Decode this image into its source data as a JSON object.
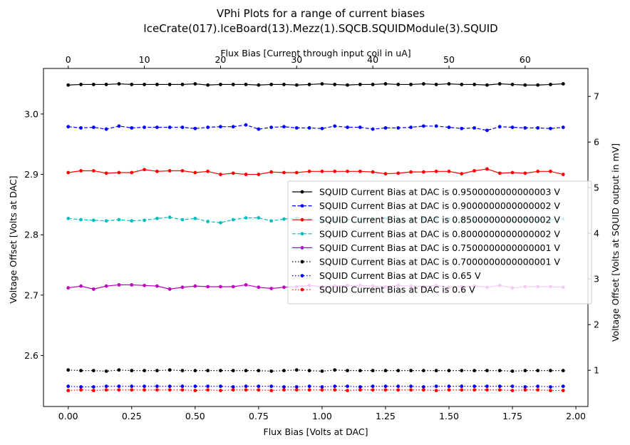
{
  "chart_data": {
    "type": "line",
    "title": [
      "VPhi Plots for a range of current biases",
      "IceCrate(017).IceBoard(13).Mezz(1).SQCB.SQUIDModule(3).SQUID"
    ],
    "xlabel": "Flux Bias [Volts at DAC]",
    "ylabel": "Voltage Offset [Volts at DAC]",
    "x2label": "Flux Bias [Current through input coil in uA]",
    "y2label": "Voltage Offset [Volts at SQUID output in mV]",
    "xlim": [
      -0.0975,
      2.0475
    ],
    "ylim": [
      2.5155,
      3.0755
    ],
    "x2lim": [
      -3.25,
      68.25
    ],
    "y2lim": [
      0.2062,
      7.6123
    ],
    "xticks": [
      "0.00",
      "0.25",
      "0.50",
      "0.75",
      "1.00",
      "1.25",
      "1.50",
      "1.75",
      "2.00"
    ],
    "yticks": [
      "2.6",
      "2.7",
      "2.8",
      "2.9",
      "3.0"
    ],
    "x2ticks": [
      "0",
      "10",
      "20",
      "30",
      "40",
      "50",
      "60"
    ],
    "y2ticks": [
      "1",
      "2",
      "3",
      "4",
      "5",
      "6",
      "7"
    ],
    "legend_position": "center-right",
    "x": [
      0.0,
      0.05,
      0.1,
      0.15,
      0.2,
      0.25,
      0.3,
      0.35,
      0.4,
      0.45,
      0.5,
      0.55,
      0.6,
      0.65,
      0.7,
      0.75,
      0.8,
      0.85,
      0.9,
      0.95,
      1.0,
      1.05,
      1.1,
      1.15,
      1.2,
      1.25,
      1.3,
      1.35,
      1.4,
      1.45,
      1.5,
      1.55,
      1.6,
      1.65,
      1.7,
      1.75,
      1.8,
      1.85,
      1.9,
      1.95
    ],
    "series": [
      {
        "name": "SQUID Current Bias at DAC is 0.9500000000000003 V",
        "color": "#000000",
        "linestyle": "solid",
        "values": [
          3.048,
          3.049,
          3.049,
          3.049,
          3.05,
          3.049,
          3.049,
          3.049,
          3.049,
          3.049,
          3.05,
          3.048,
          3.049,
          3.049,
          3.049,
          3.048,
          3.049,
          3.049,
          3.048,
          3.049,
          3.05,
          3.049,
          3.048,
          3.049,
          3.049,
          3.05,
          3.049,
          3.049,
          3.05,
          3.049,
          3.05,
          3.049,
          3.049,
          3.048,
          3.05,
          3.049,
          3.048,
          3.048,
          3.049,
          3.05
        ]
      },
      {
        "name": "SQUID Current Bias at DAC is 0.9000000000000002 V",
        "color": "#0000ff",
        "linestyle": "dashed",
        "values": [
          2.979,
          2.977,
          2.978,
          2.975,
          2.98,
          2.977,
          2.978,
          2.978,
          2.978,
          2.978,
          2.976,
          2.978,
          2.979,
          2.979,
          2.982,
          2.975,
          2.978,
          2.979,
          2.977,
          2.977,
          2.976,
          2.98,
          2.978,
          2.978,
          2.975,
          2.977,
          2.977,
          2.978,
          2.98,
          2.98,
          2.978,
          2.976,
          2.977,
          2.973,
          2.979,
          2.978,
          2.977,
          2.977,
          2.976,
          2.978
        ]
      },
      {
        "name": "SQUID Current Bias at DAC is 0.8500000000000002 V",
        "color": "#ff0000",
        "linestyle": "solid",
        "values": [
          2.903,
          2.906,
          2.906,
          2.902,
          2.903,
          2.903,
          2.908,
          2.905,
          2.906,
          2.906,
          2.903,
          2.905,
          2.9,
          2.902,
          2.9,
          2.9,
          2.904,
          2.903,
          2.903,
          2.905,
          2.905,
          2.905,
          2.905,
          2.905,
          2.904,
          2.901,
          2.902,
          2.904,
          2.904,
          2.905,
          2.905,
          2.901,
          2.906,
          2.909,
          2.902,
          2.903,
          2.902,
          2.905,
          2.905,
          2.9
        ]
      },
      {
        "name": "SQUID Current Bias at DAC is 0.8000000000000002 V",
        "color": "#00bfbf",
        "linestyle": "dashed",
        "values": [
          2.827,
          2.825,
          2.824,
          2.823,
          2.825,
          2.823,
          2.824,
          2.827,
          2.829,
          2.825,
          2.827,
          2.822,
          2.82,
          2.825,
          2.828,
          2.828,
          2.823,
          2.826,
          2.828,
          2.825,
          2.823,
          2.823,
          2.825,
          2.825,
          2.826,
          2.827,
          2.826,
          2.826,
          2.826,
          2.827,
          2.826,
          2.825,
          2.824,
          2.826,
          2.823,
          2.824,
          2.826,
          2.824,
          2.825,
          2.826
        ]
      },
      {
        "name": "SQUID Current Bias at DAC is 0.7500000000000001 V",
        "color": "#bf00bf",
        "linestyle": "solid",
        "values": [
          2.712,
          2.715,
          2.71,
          2.715,
          2.717,
          2.717,
          2.716,
          2.715,
          2.71,
          2.713,
          2.715,
          2.714,
          2.714,
          2.714,
          2.717,
          2.713,
          2.711,
          2.713,
          2.714,
          2.716,
          2.714,
          2.715,
          2.716,
          2.716,
          2.715,
          2.714,
          2.716,
          2.715,
          2.714,
          2.716,
          2.713,
          2.714,
          2.715,
          2.713,
          2.716,
          2.712,
          2.714,
          2.714,
          2.714,
          2.713
        ]
      },
      {
        "name": "SQUID Current Bias at DAC is 0.7000000000000001 V",
        "color": "#000000",
        "linestyle": "dotted",
        "values": [
          2.576,
          2.575,
          2.575,
          2.574,
          2.576,
          2.575,
          2.575,
          2.575,
          2.576,
          2.575,
          2.575,
          2.575,
          2.575,
          2.575,
          2.575,
          2.575,
          2.574,
          2.575,
          2.576,
          2.575,
          2.574,
          2.576,
          2.575,
          2.575,
          2.575,
          2.575,
          2.575,
          2.575,
          2.575,
          2.575,
          2.575,
          2.575,
          2.575,
          2.575,
          2.575,
          2.574,
          2.575,
          2.575,
          2.575,
          2.575
        ]
      },
      {
        "name": "SQUID Current Bias at DAC is 0.65 V",
        "color": "#0000ff",
        "linestyle": "dotted",
        "values": [
          2.549,
          2.548,
          2.548,
          2.549,
          2.549,
          2.549,
          2.549,
          2.549,
          2.549,
          2.549,
          2.549,
          2.549,
          2.549,
          2.548,
          2.549,
          2.549,
          2.549,
          2.548,
          2.548,
          2.549,
          2.548,
          2.549,
          2.549,
          2.548,
          2.549,
          2.549,
          2.549,
          2.549,
          2.548,
          2.549,
          2.549,
          2.549,
          2.549,
          2.549,
          2.549,
          2.549,
          2.548,
          2.549,
          2.548,
          2.549
        ]
      },
      {
        "name": "SQUID Current Bias at DAC is 0.6 V",
        "color": "#ff0000",
        "linestyle": "dotted",
        "values": [
          2.542,
          2.543,
          2.542,
          2.543,
          2.543,
          2.543,
          2.543,
          2.543,
          2.543,
          2.543,
          2.542,
          2.543,
          2.542,
          2.543,
          2.543,
          2.543,
          2.542,
          2.543,
          2.543,
          2.543,
          2.543,
          2.543,
          2.542,
          2.543,
          2.543,
          2.543,
          2.543,
          2.543,
          2.543,
          2.542,
          2.543,
          2.543,
          2.543,
          2.543,
          2.543,
          2.542,
          2.543,
          2.543,
          2.542,
          2.542
        ]
      }
    ]
  }
}
